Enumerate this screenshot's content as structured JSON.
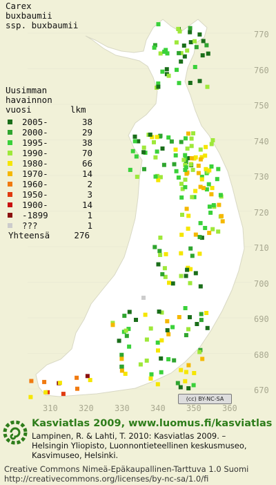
{
  "species": {
    "line1": "Carex",
    "line2": "buxbaumii",
    "line3": "ssp. buxbaumii"
  },
  "legend": {
    "heading1": "Uusimman",
    "heading2": "havainnon",
    "col_year": "vuosi",
    "col_count": "lkm",
    "rows": [
      {
        "period": "2005-",
        "count": "38",
        "color": "#1a6e1a"
      },
      {
        "period": "2000-",
        "count": "29",
        "color": "#2fa52f"
      },
      {
        "period": "1995-",
        "count": "38",
        "color": "#3ad13a"
      },
      {
        "period": "1990-",
        "count": "70",
        "color": "#9ee83a"
      },
      {
        "period": "1980-",
        "count": "66",
        "color": "#f5e600"
      },
      {
        "period": "1970-",
        "count": "14",
        "color": "#f5b800"
      },
      {
        "period": "1960-",
        "count": "2",
        "color": "#f07a10"
      },
      {
        "period": "1950-",
        "count": "3",
        "color": "#e03a10"
      },
      {
        "period": "1900-",
        "count": "14",
        "color": "#c81010"
      },
      {
        "period": "-1899",
        "count": "1",
        "color": "#8a1010"
      },
      {
        "period": "???",
        "count": "1",
        "color": "#cccccc"
      }
    ],
    "total_label": "Yhteensä",
    "total_count": "276"
  },
  "y_axis": [
    "770",
    "760",
    "750",
    "740",
    "730",
    "720",
    "710",
    "700",
    "690",
    "680",
    "670"
  ],
  "x_axis": [
    "310",
    "320",
    "330",
    "340",
    "350",
    "360"
  ],
  "license_badge": "(cc) BY-NC-SA",
  "footer": {
    "title": "Kasviatlas 2009, www.luomus.fi/kasviatlas",
    "citation1": "Lampinen, R. & Lahti, T. 2010: Kasviatlas 2009. –",
    "citation2": "Helsingin Yliopisto, Luonnontieteellinen keskusmuseo,",
    "citation3": "Kasvimuseo, Helsinki.",
    "license1": "Creative Commons Nimeä-Epäkaupallinen-Tarttuva 1.0 Suomi",
    "license2": "http://creativecommons.org/licenses/by-nc-sa/1.0/fi"
  },
  "colors": {
    "background": "#f1f1d8",
    "land": "#ffffff",
    "grid": "#e3e3cc",
    "brand": "#2e7d1b"
  }
}
